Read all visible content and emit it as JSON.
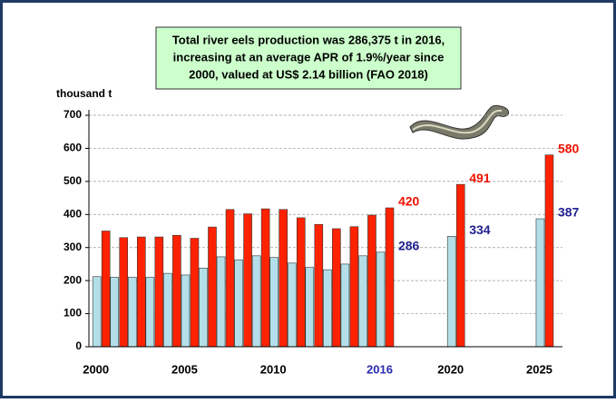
{
  "chart_data": {
    "type": "bar",
    "title": [
      "Total river eels production was 286,375 t in 2016,",
      "increasing at an average APR of 1.9%/year since",
      "2000, valued at US$ 2.14 billion (FAO 2018)"
    ],
    "y_label": "thousand t",
    "x": [
      2000,
      2001,
      2002,
      2003,
      2004,
      2005,
      2006,
      2007,
      2008,
      2009,
      2010,
      2011,
      2012,
      2013,
      2014,
      2015,
      2016,
      2017,
      2018,
      2019,
      2020,
      2021,
      2022,
      2023,
      2024,
      2025
    ],
    "series": [
      {
        "color": "#b4dfe9",
        "label_color": "#1f1f8f",
        "values": [
          212,
          210,
          210,
          210,
          222,
          217,
          238,
          272,
          263,
          275,
          270,
          253,
          240,
          233,
          250,
          275,
          286,
          null,
          null,
          null,
          334,
          null,
          null,
          null,
          null,
          387
        ]
      },
      {
        "color": "#ff2200",
        "label_color": "#ee1100",
        "values": [
          350,
          330,
          332,
          332,
          337,
          328,
          362,
          415,
          402,
          417,
          415,
          390,
          370,
          357,
          363,
          398,
          420,
          null,
          null,
          null,
          491,
          null,
          null,
          null,
          null,
          580
        ]
      }
    ],
    "data_labels_at": [
      16,
      20,
      25
    ],
    "xlim": [
      1999.3,
      2026
    ],
    "xticks": [
      2000,
      2005,
      2010,
      2016,
      2020,
      2025
    ],
    "xtick_highlight": {
      "value": 2016,
      "color": "#2a2ab0"
    },
    "ylim": [
      0,
      700
    ],
    "yticks": [
      0,
      100,
      200,
      300,
      400,
      500,
      600,
      700
    ],
    "grid": true,
    "title_box_color": "#ccffcc"
  }
}
